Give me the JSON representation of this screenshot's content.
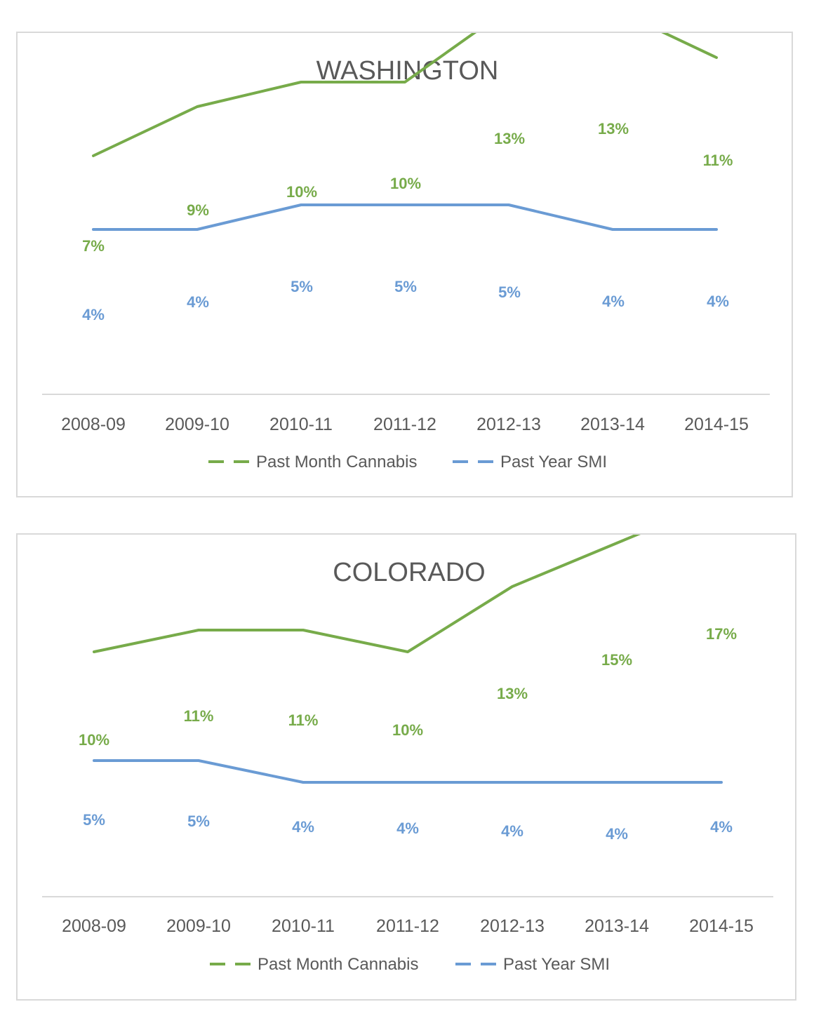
{
  "colors": {
    "cannabis": "#77ab4a",
    "smi": "#6a9bd4",
    "axis": "#d9d9d9",
    "text": "#595959"
  },
  "chart_data": [
    {
      "type": "line",
      "title": "WASHINGTON",
      "categories": [
        "2008-09",
        "2009-10",
        "2010-11",
        "2011-12",
        "2012-13",
        "2013-14",
        "2014-15"
      ],
      "series": [
        {
          "name": "Past Month Cannabis",
          "values": [
            7,
            9,
            10,
            10,
            13,
            13,
            11
          ],
          "labels": [
            "7%",
            "9%",
            "10%",
            "10%",
            "13%",
            "13%",
            "11%"
          ]
        },
        {
          "name": "Past Year SMI",
          "values": [
            4,
            4,
            5,
            5,
            5,
            4,
            4
          ],
          "labels": [
            "4%",
            "4%",
            "5%",
            "5%",
            "5%",
            "4%",
            "4%"
          ]
        }
      ],
      "legend_position": "bottom",
      "grid": false
    },
    {
      "type": "line",
      "title": "COLORADO",
      "categories": [
        "2008-09",
        "2009-10",
        "2010-11",
        "2011-12",
        "2012-13",
        "2013-14",
        "2014-15"
      ],
      "series": [
        {
          "name": "Past Month Cannabis",
          "values": [
            10,
            11,
            11,
            10,
            13,
            15,
            17
          ],
          "labels": [
            "10%",
            "11%",
            "11%",
            "10%",
            "13%",
            "15%",
            "17%"
          ]
        },
        {
          "name": "Past Year SMI",
          "values": [
            5,
            5,
            4,
            4,
            4,
            4,
            4
          ],
          "labels": [
            "5%",
            "5%",
            "4%",
            "4%",
            "4%",
            "4%",
            "4%"
          ]
        }
      ],
      "legend_position": "bottom",
      "grid": false
    }
  ]
}
